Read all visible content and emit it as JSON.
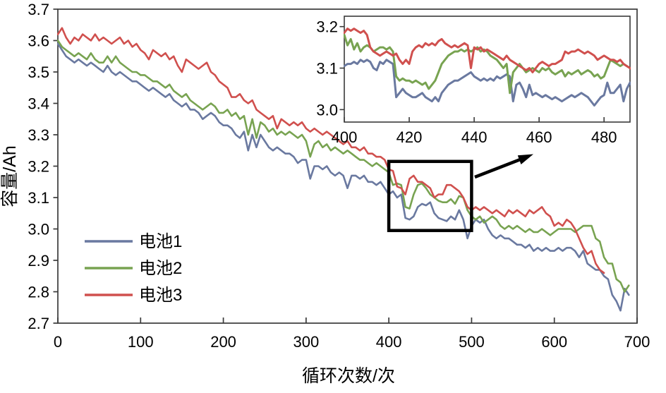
{
  "figure": {
    "type": "battery-capacity-degradation-figure",
    "background": "#ffffff",
    "axis_color": "#3a3a3a",
    "annotation_color": "#000000"
  },
  "annotation": {
    "zoom_region": {
      "x_range": [
        400,
        500
      ],
      "y_range": [
        2.995,
        3.215
      ]
    },
    "arrow_icon": "arrow-right-up"
  },
  "legend": {
    "items": [
      {
        "label": "电池1",
        "color": "#6a79a0"
      },
      {
        "label": "电池2",
        "color": "#78a351"
      },
      {
        "label": "电池3",
        "color": "#d0504e"
      }
    ]
  },
  "chart_data": [
    {
      "type": "line",
      "title": "",
      "xlabel": "循环次数/次",
      "ylabel": "容量/Ah",
      "xlim": [
        0,
        700
      ],
      "ylim": [
        2.7,
        3.7
      ],
      "grid": false,
      "legend_position": "lower-left-inside",
      "x_ticks": [
        0,
        100,
        200,
        300,
        400,
        500,
        600,
        700
      ],
      "x_tick_labels": [
        "0",
        "100",
        "200",
        "300",
        "400",
        "500",
        "600",
        "700"
      ],
      "y_ticks": [
        2.7,
        2.8,
        2.9,
        3.0,
        3.1,
        3.2,
        3.3,
        3.4,
        3.5,
        3.6,
        3.7
      ],
      "y_tick_labels": [
        "2.7",
        "2.8",
        "2.9",
        "3.0",
        "3.1",
        "3.2",
        "3.3",
        "3.4",
        "3.5",
        "3.6",
        "3.7"
      ],
      "x_start": 0,
      "x_step": 5,
      "series": [
        {
          "name": "电池1",
          "color": "#6a79a0",
          "values": [
            3.59,
            3.57,
            3.55,
            3.54,
            3.53,
            3.54,
            3.53,
            3.52,
            3.53,
            3.52,
            3.51,
            3.5,
            3.52,
            3.5,
            3.49,
            3.5,
            3.49,
            3.48,
            3.47,
            3.47,
            3.46,
            3.45,
            3.44,
            3.45,
            3.44,
            3.43,
            3.42,
            3.43,
            3.41,
            3.4,
            3.39,
            3.4,
            3.38,
            3.38,
            3.37,
            3.35,
            3.36,
            3.37,
            3.36,
            3.34,
            3.33,
            3.33,
            3.32,
            3.3,
            3.29,
            3.31,
            3.25,
            3.3,
            3.26,
            3.3,
            3.28,
            3.26,
            3.25,
            3.26,
            3.25,
            3.24,
            3.24,
            3.23,
            3.21,
            3.22,
            3.22,
            3.16,
            3.2,
            3.2,
            3.19,
            3.2,
            3.18,
            3.17,
            3.18,
            3.17,
            3.13,
            3.17,
            3.17,
            3.16,
            3.17,
            3.15,
            3.15,
            3.14,
            3.15,
            3.13,
            3.11,
            3.12,
            3.1,
            3.11,
            3.035,
            3.03,
            3.04,
            3.07,
            3.08,
            3.075,
            3.085,
            3.05,
            3.035,
            3.03,
            3.025,
            3.04,
            3.03,
            3.06,
            3.03,
            2.97,
            3.01,
            3.03,
            3.02,
            3.03,
            3.0,
            2.98,
            2.97,
            2.98,
            2.97,
            2.97,
            2.96,
            2.95,
            2.95,
            2.94,
            2.95,
            2.93,
            2.94,
            2.93,
            2.94,
            2.93,
            2.93,
            2.94,
            2.93,
            2.94,
            2.94,
            2.93,
            2.91,
            2.93,
            2.89,
            2.88,
            2.87,
            2.87,
            2.85,
            2.84,
            2.79,
            2.77,
            2.74,
            2.81,
            2.79
          ]
        },
        {
          "name": "电池2",
          "color": "#78a351",
          "values": [
            3.6,
            3.58,
            3.57,
            3.56,
            3.55,
            3.56,
            3.55,
            3.54,
            3.56,
            3.54,
            3.53,
            3.53,
            3.55,
            3.53,
            3.55,
            3.53,
            3.52,
            3.51,
            3.5,
            3.5,
            3.49,
            3.49,
            3.48,
            3.47,
            3.47,
            3.46,
            3.45,
            3.46,
            3.44,
            3.43,
            3.42,
            3.43,
            3.41,
            3.4,
            3.39,
            3.38,
            3.39,
            3.4,
            3.39,
            3.37,
            3.37,
            3.38,
            3.36,
            3.37,
            3.35,
            3.36,
            3.3,
            3.35,
            3.29,
            3.34,
            3.33,
            3.31,
            3.32,
            3.3,
            3.31,
            3.3,
            3.31,
            3.3,
            3.29,
            3.3,
            3.28,
            3.23,
            3.27,
            3.28,
            3.26,
            3.27,
            3.25,
            3.26,
            3.25,
            3.24,
            3.25,
            3.24,
            3.23,
            3.22,
            3.22,
            3.21,
            3.2,
            3.21,
            3.2,
            3.19,
            3.18,
            3.14,
            3.145,
            3.14,
            3.07,
            3.065,
            3.11,
            3.14,
            3.145,
            3.13,
            3.11,
            3.1,
            3.09,
            3.085,
            3.085,
            3.095,
            3.08,
            3.105,
            3.1,
            3.06,
            3.04,
            3.03,
            3.04,
            3.02,
            3.03,
            3.04,
            3.03,
            3.01,
            3.0,
            3.01,
            3.0,
            3.01,
            3.0,
            2.99,
            3.0,
            2.99,
            2.99,
            3.0,
            2.99,
            2.98,
            2.99,
            3.0,
            3.0,
            3.0,
            3.0,
            2.99,
            3.0,
            3.01,
            3.01,
            3.01,
            2.97,
            2.96,
            2.91,
            2.89,
            2.89,
            2.84,
            2.83,
            2.8,
            2.82
          ]
        },
        {
          "name": "电池3",
          "color": "#d0504e",
          "values": [
            3.62,
            3.64,
            3.61,
            3.59,
            3.61,
            3.6,
            3.62,
            3.61,
            3.6,
            3.62,
            3.6,
            3.61,
            3.6,
            3.59,
            3.6,
            3.61,
            3.59,
            3.6,
            3.58,
            3.59,
            3.57,
            3.56,
            3.54,
            3.57,
            3.56,
            3.55,
            3.56,
            3.54,
            3.55,
            3.52,
            3.5,
            3.54,
            3.53,
            3.52,
            3.51,
            3.52,
            3.53,
            3.5,
            3.49,
            3.47,
            3.46,
            3.45,
            3.42,
            3.42,
            3.43,
            3.41,
            3.4,
            3.41,
            3.38,
            3.37,
            3.36,
            3.35,
            3.36,
            3.32,
            3.35,
            3.34,
            3.33,
            3.34,
            3.33,
            3.34,
            3.32,
            3.31,
            3.32,
            3.31,
            3.3,
            3.31,
            3.3,
            3.29,
            3.28,
            3.27,
            3.28,
            3.26,
            3.26,
            3.25,
            3.26,
            3.24,
            3.24,
            3.23,
            3.23,
            3.22,
            3.19,
            3.185,
            3.135,
            3.13,
            3.11,
            3.16,
            3.17,
            3.15,
            3.15,
            3.14,
            3.13,
            3.1,
            3.11,
            3.11,
            3.14,
            3.14,
            3.13,
            3.12,
            3.1,
            3.07,
            3.06,
            3.07,
            3.06,
            3.07,
            3.06,
            3.05,
            3.06,
            3.05,
            3.04,
            3.06,
            3.05,
            3.06,
            3.05,
            3.04,
            3.06,
            3.05,
            3.06,
            3.07,
            3.05,
            3.04,
            3.01,
            3.02,
            3.01,
            3.03,
            3.02,
            3.0,
            2.97,
            2.94,
            2.92,
            2.93,
            2.89,
            2.87,
            2.86
          ]
        }
      ]
    },
    {
      "type": "line",
      "title": "",
      "xlabel": "",
      "ylabel": "",
      "xlim": [
        400,
        488
      ],
      "ylim": [
        2.97,
        3.225
      ],
      "grid": false,
      "x_ticks": [
        400,
        420,
        440,
        460,
        480
      ],
      "x_tick_labels": [
        "400",
        "420",
        "440",
        "460",
        "480"
      ],
      "y_ticks": [
        3.0,
        3.1,
        3.2
      ],
      "y_tick_labels": [
        "3.0",
        "3.1",
        "3.2"
      ],
      "x_start": 400,
      "x_step": 1,
      "series": [
        {
          "name": "电池1",
          "color": "#6a79a0",
          "values": [
            3.105,
            3.11,
            3.11,
            3.115,
            3.11,
            3.12,
            3.115,
            3.12,
            3.115,
            3.1,
            3.095,
            3.115,
            3.11,
            3.12,
            3.115,
            3.11,
            3.03,
            3.04,
            3.05,
            3.04,
            3.035,
            3.03,
            3.03,
            3.035,
            3.04,
            3.03,
            3.025,
            3.02,
            3.03,
            3.02,
            3.04,
            3.05,
            3.06,
            3.065,
            3.07,
            3.07,
            3.075,
            3.08,
            3.085,
            3.09,
            3.08,
            3.075,
            3.07,
            3.075,
            3.07,
            3.075,
            3.07,
            3.08,
            3.075,
            3.08,
            3.085,
            3.08,
            3.02,
            3.06,
            3.065,
            3.05,
            3.03,
            3.06,
            3.035,
            3.04,
            3.035,
            3.03,
            3.035,
            3.03,
            3.025,
            3.03,
            3.025,
            3.02,
            3.025,
            3.03,
            3.035,
            3.03,
            3.035,
            3.04,
            3.035,
            3.03,
            3.02,
            3.01,
            3.02,
            3.03,
            3.035,
            3.065,
            3.04,
            3.04,
            3.05,
            3.06,
            3.02,
            3.05,
            3.065,
            3.05
          ]
        },
        {
          "name": "电池2",
          "color": "#78a351",
          "values": [
            3.18,
            3.155,
            3.17,
            3.145,
            3.16,
            3.14,
            3.15,
            3.155,
            3.15,
            3.14,
            3.145,
            3.15,
            3.15,
            3.145,
            3.15,
            3.14,
            3.08,
            3.07,
            3.075,
            3.07,
            3.07,
            3.065,
            3.07,
            3.065,
            3.06,
            3.065,
            3.05,
            3.06,
            3.07,
            3.09,
            3.11,
            3.12,
            3.13,
            3.135,
            3.14,
            3.14,
            3.145,
            3.14,
            3.145,
            3.14,
            3.145,
            3.15,
            3.14,
            3.145,
            3.14,
            3.13,
            3.125,
            3.12,
            3.11,
            3.1,
            3.11,
            3.04,
            3.09,
            3.1,
            3.11,
            3.1,
            3.09,
            3.095,
            3.1,
            3.095,
            3.09,
            3.1,
            3.095,
            3.1,
            3.09,
            3.085,
            3.09,
            3.095,
            3.08,
            3.09,
            3.085,
            3.09,
            3.095,
            3.085,
            3.09,
            3.095,
            3.09,
            3.08,
            3.085,
            3.075,
            3.08,
            3.1,
            3.12,
            3.115,
            3.11,
            3.105,
            3.11,
            3.105,
            3.1,
            3.095
          ]
        },
        {
          "name": "电池3",
          "color": "#d0504e",
          "values": [
            3.185,
            3.195,
            3.19,
            3.195,
            3.19,
            3.185,
            3.19,
            3.18,
            3.15,
            3.14,
            3.135,
            3.13,
            3.135,
            3.14,
            3.135,
            3.13,
            3.135,
            3.12,
            3.11,
            3.12,
            3.11,
            3.14,
            3.15,
            3.155,
            3.15,
            3.16,
            3.155,
            3.16,
            3.155,
            3.165,
            3.17,
            3.16,
            3.155,
            3.15,
            3.155,
            3.15,
            3.155,
            3.16,
            3.155,
            3.1,
            3.15,
            3.145,
            3.15,
            3.14,
            3.145,
            3.14,
            3.135,
            3.13,
            3.125,
            3.12,
            3.13,
            3.12,
            3.115,
            3.11,
            3.105,
            3.1,
            3.095,
            3.1,
            3.09,
            3.1,
            3.11,
            3.115,
            3.11,
            3.105,
            3.11,
            3.11,
            3.115,
            3.12,
            3.14,
            3.135,
            3.14,
            3.14,
            3.145,
            3.14,
            3.135,
            3.14,
            3.135,
            3.13,
            3.12,
            3.125,
            3.13,
            3.125,
            3.12,
            3.12,
            3.115,
            3.12,
            3.11,
            3.105,
            3.1,
            3.095
          ]
        }
      ]
    }
  ]
}
